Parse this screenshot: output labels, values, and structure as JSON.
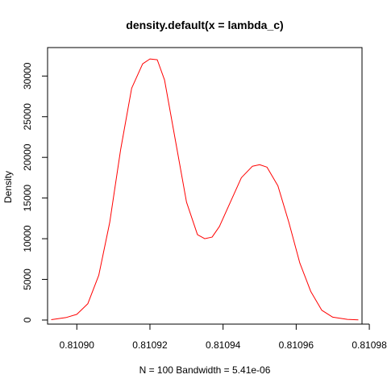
{
  "chart_data": {
    "type": "line",
    "title": "density.default(x = lambda_c)",
    "xlabel": "N = 100   Bandwidth = 5.41e-06",
    "ylabel": "Density",
    "xlim": [
      0.810892,
      0.810978
    ],
    "ylim": [
      -500,
      33500
    ],
    "grid": false,
    "legend": "none",
    "line_color": "#ff0000",
    "x_ticks": [
      0.8109,
      0.81092,
      0.81094,
      0.81096,
      0.81098
    ],
    "x_tick_labels": [
      "0.81090",
      "0.81092",
      "0.81094",
      "0.81096",
      "0.81098"
    ],
    "y_ticks": [
      0,
      5000,
      10000,
      15000,
      20000,
      25000,
      30000
    ],
    "y_tick_labels": [
      "0",
      "5000",
      "10000",
      "15000",
      "20000",
      "25000",
      "30000"
    ],
    "series": [
      {
        "x": [
          0.810893,
          0.810897,
          0.8109,
          0.810903,
          0.810906,
          0.810909,
          0.810912,
          0.810915,
          0.810918,
          0.81092,
          0.810922,
          0.810924,
          0.810927,
          0.81093,
          0.810933,
          0.810935,
          0.810937,
          0.810939,
          0.810942,
          0.810945,
          0.810948,
          0.81095,
          0.810952,
          0.810955,
          0.810958,
          0.810961,
          0.810964,
          0.810967,
          0.81097,
          0.810974,
          0.810977
        ],
        "y": [
          50,
          300,
          700,
          2000,
          5500,
          12000,
          21000,
          28500,
          31500,
          32100,
          32000,
          29500,
          22000,
          14500,
          10500,
          10000,
          10200,
          11500,
          14500,
          17500,
          18900,
          19100,
          18800,
          16500,
          12000,
          7000,
          3500,
          1200,
          350,
          80,
          20
        ]
      }
    ]
  }
}
